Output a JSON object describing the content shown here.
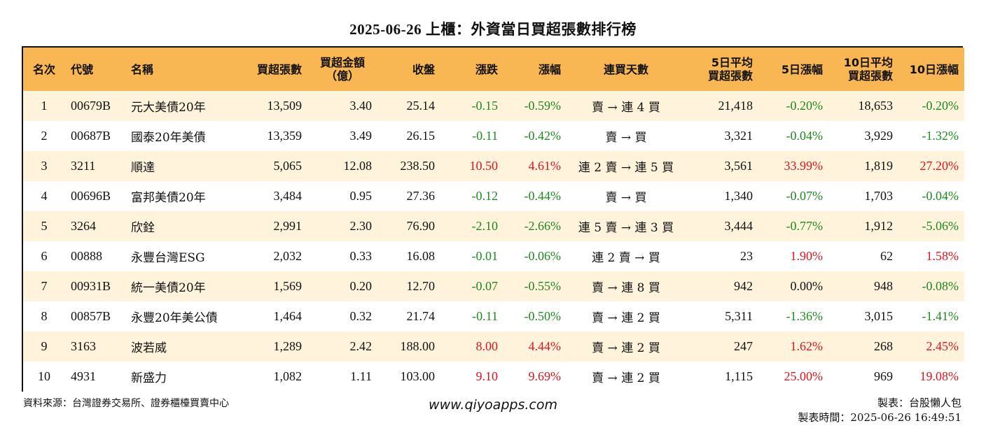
{
  "title": "2025-06-26 上櫃：外資當日買超張數排行榜",
  "table": {
    "headers": [
      {
        "label": "名次",
        "align": "c"
      },
      {
        "label": "代號",
        "align": "l"
      },
      {
        "label": "名稱",
        "align": "l"
      },
      {
        "label": "買超張數",
        "align": "r"
      },
      {
        "label": "買超金額\n（億）",
        "align": "c"
      },
      {
        "label": "收盤",
        "align": "r"
      },
      {
        "label": "漲跌",
        "align": "r"
      },
      {
        "label": "漲幅",
        "align": "r"
      },
      {
        "label": "連買天數",
        "align": "c"
      },
      {
        "label": "5日平均\n買超張數",
        "align": "r"
      },
      {
        "label": "5日漲幅",
        "align": "r"
      },
      {
        "label": "10日平均\n買超張數",
        "align": "r"
      },
      {
        "label": "10日漲幅",
        "align": "r"
      }
    ],
    "rows": [
      {
        "rank": "1",
        "code": "00679B",
        "name": "元大美債20年",
        "net_buy": "13,509",
        "amount": "3.40",
        "close": "25.14",
        "change": "-0.15",
        "change_pct": "-0.59%",
        "streak": "賣 → 連 4 買",
        "avg5": "21,418",
        "pct5": "-0.20%",
        "avg10": "18,653",
        "pct10": "-0.20%"
      },
      {
        "rank": "2",
        "code": "00687B",
        "name": "國泰20年美債",
        "net_buy": "13,359",
        "amount": "3.49",
        "close": "26.15",
        "change": "-0.11",
        "change_pct": "-0.42%",
        "streak": "賣 → 買",
        "avg5": "3,321",
        "pct5": "-0.04%",
        "avg10": "3,929",
        "pct10": "-1.32%"
      },
      {
        "rank": "3",
        "code": "3211",
        "name": "順達",
        "net_buy": "5,065",
        "amount": "12.08",
        "close": "238.50",
        "change": "10.50",
        "change_pct": "4.61%",
        "streak": "連 2 賣 → 連 5 買",
        "avg5": "3,561",
        "pct5": "33.99%",
        "avg10": "1,819",
        "pct10": "27.20%"
      },
      {
        "rank": "4",
        "code": "00696B",
        "name": "富邦美債20年",
        "net_buy": "3,484",
        "amount": "0.95",
        "close": "27.36",
        "change": "-0.12",
        "change_pct": "-0.44%",
        "streak": "賣 → 買",
        "avg5": "1,340",
        "pct5": "-0.07%",
        "avg10": "1,703",
        "pct10": "-0.04%"
      },
      {
        "rank": "5",
        "code": "3264",
        "name": "欣銓",
        "net_buy": "2,991",
        "amount": "2.30",
        "close": "76.90",
        "change": "-2.10",
        "change_pct": "-2.66%",
        "streak": "連 5 賣 → 連 3 買",
        "avg5": "3,444",
        "pct5": "-0.77%",
        "avg10": "1,912",
        "pct10": "-5.06%"
      },
      {
        "rank": "6",
        "code": "00888",
        "name": "永豐台灣ESG",
        "net_buy": "2,032",
        "amount": "0.33",
        "close": "16.08",
        "change": "-0.01",
        "change_pct": "-0.06%",
        "streak": "連 2 賣 → 買",
        "avg5": "23",
        "pct5": "1.90%",
        "avg10": "62",
        "pct10": "1.58%"
      },
      {
        "rank": "7",
        "code": "00931B",
        "name": "統一美債20年",
        "net_buy": "1,569",
        "amount": "0.20",
        "close": "12.70",
        "change": "-0.07",
        "change_pct": "-0.55%",
        "streak": "賣 → 連 8 買",
        "avg5": "942",
        "pct5": "0.00%",
        "avg10": "948",
        "pct10": "-0.08%"
      },
      {
        "rank": "8",
        "code": "00857B",
        "name": "永豐20年美公債",
        "net_buy": "1,464",
        "amount": "0.32",
        "close": "21.74",
        "change": "-0.11",
        "change_pct": "-0.50%",
        "streak": "賣 → 連 2 買",
        "avg5": "5,311",
        "pct5": "-1.36%",
        "avg10": "3,015",
        "pct10": "-1.41%"
      },
      {
        "rank": "9",
        "code": "3163",
        "name": "波若威",
        "net_buy": "1,289",
        "amount": "2.42",
        "close": "188.00",
        "change": "8.00",
        "change_pct": "4.44%",
        "streak": "賣 → 連 2 買",
        "avg5": "247",
        "pct5": "1.62%",
        "avg10": "268",
        "pct10": "2.45%"
      },
      {
        "rank": "10",
        "code": "4931",
        "name": "新盛力",
        "net_buy": "1,082",
        "amount": "1.11",
        "close": "103.00",
        "change": "9.10",
        "change_pct": "9.69%",
        "streak": "賣 → 連 2 買",
        "avg5": "1,115",
        "pct5": "25.00%",
        "avg10": "969",
        "pct10": "19.08%"
      }
    ]
  },
  "colors": {
    "header_bg": "#f8b752",
    "odd_row_bg": "#fff3dc",
    "up": "#e0141e",
    "down": "#1c8a1c"
  },
  "footer": {
    "source": "資料來源：台灣證券交易所、證券櫃檯買賣中心",
    "website": "www.qiyoapps.com",
    "author": "製表：台股懶人包",
    "made_time": "製表時間：2025-06-26 16:49:51"
  }
}
